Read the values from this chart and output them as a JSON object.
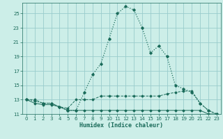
{
  "xlabel": "Humidex (Indice chaleur)",
  "bg_color": "#cceee8",
  "grid_color": "#99cccc",
  "line_color": "#1a6b5a",
  "xlim": [
    -0.5,
    23.5
  ],
  "ylim": [
    11,
    26.5
  ],
  "xticks": [
    0,
    1,
    2,
    3,
    4,
    5,
    6,
    7,
    8,
    9,
    10,
    11,
    12,
    13,
    14,
    15,
    16,
    17,
    18,
    19,
    20,
    21,
    22,
    23
  ],
  "yticks": [
    11,
    13,
    15,
    17,
    19,
    21,
    23,
    25
  ],
  "curve_peak_x": [
    0,
    1,
    2,
    3,
    4,
    5,
    6,
    7,
    8,
    9,
    10,
    11,
    12,
    13,
    14,
    15,
    16,
    17,
    18,
    19,
    20,
    21,
    22,
    23
  ],
  "curve_peak_y": [
    13.0,
    12.8,
    12.5,
    12.5,
    12.0,
    11.5,
    11.5,
    14.0,
    16.5,
    18.0,
    21.5,
    25.0,
    26.0,
    25.5,
    23.0,
    19.5,
    20.5,
    19.0,
    15.0,
    14.5,
    14.0,
    12.5,
    11.5,
    11.0
  ],
  "curve_upper_x": [
    0,
    1,
    2,
    3,
    4,
    5,
    6,
    7,
    8,
    9,
    10,
    11,
    12,
    13,
    14,
    15,
    16,
    17,
    18,
    19,
    20,
    21,
    22,
    23
  ],
  "curve_upper_y": [
    13.0,
    13.0,
    12.5,
    12.5,
    12.0,
    11.8,
    13.0,
    13.0,
    13.0,
    13.5,
    13.5,
    13.5,
    13.5,
    13.5,
    13.5,
    13.5,
    13.5,
    13.8,
    14.0,
    14.2,
    14.2,
    12.5,
    11.5,
    11.0
  ],
  "curve_lower_x": [
    0,
    1,
    2,
    3,
    4,
    5,
    6,
    7,
    8,
    9,
    10,
    11,
    12,
    13,
    14,
    15,
    16,
    17,
    18,
    19,
    20,
    21,
    22,
    23
  ],
  "curve_lower_y": [
    13.0,
    12.5,
    12.3,
    12.3,
    12.0,
    11.5,
    11.5,
    11.5,
    11.5,
    11.5,
    11.5,
    11.5,
    11.5,
    11.5,
    11.5,
    11.5,
    11.5,
    11.5,
    11.5,
    11.5,
    11.5,
    11.5,
    11.0,
    11.0
  ]
}
